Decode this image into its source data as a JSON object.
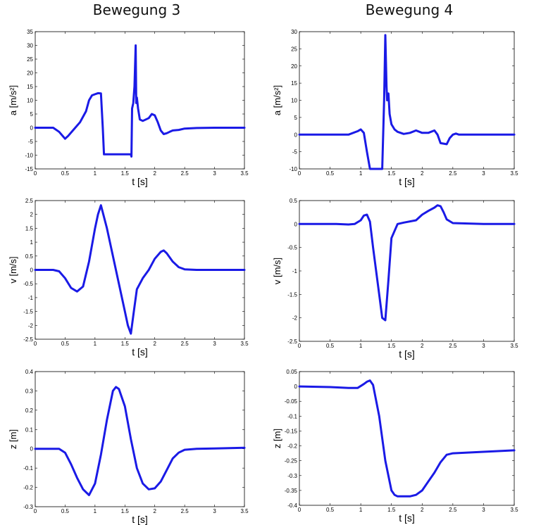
{
  "titles": {
    "left": "Bewegung 3",
    "right": "Bewegung 4"
  },
  "colors": {
    "line": "#1a1ae6",
    "axis": "#000000"
  },
  "chart_data": [
    {
      "id": "b3-a",
      "type": "line",
      "column_title": "Bewegung 3",
      "xlabel": "t [s]",
      "ylabel": "a [m/s²]",
      "xlim": [
        0,
        3.5
      ],
      "ylim": [
        -15,
        35
      ],
      "xticks": [
        0,
        0.5,
        1,
        1.5,
        2,
        2.5,
        3,
        3.5
      ],
      "xtick_labels": [
        "0",
        "0.5",
        "1",
        "1.5",
        "2",
        "2.5",
        "3",
        "3.5"
      ],
      "yticks": [
        -15,
        -10,
        -5,
        0,
        5,
        10,
        15,
        20,
        25,
        30,
        35
      ],
      "ytick_labels": [
        "-15",
        "-10",
        "-5",
        "0",
        "5",
        "10",
        "15",
        "20",
        "25",
        "30",
        "35"
      ],
      "series": [
        {
          "x": [
            0,
            0.3,
            0.4,
            0.5,
            0.55,
            0.65,
            0.75,
            0.85,
            0.9,
            0.95,
            1.0,
            1.05,
            1.1,
            1.13,
            1.15,
            1.4,
            1.55,
            1.6,
            1.61,
            1.62,
            1.64,
            1.66,
            1.68,
            1.69,
            1.7,
            1.72,
            1.75,
            1.8,
            1.85,
            1.9,
            1.95,
            2.0,
            2.05,
            2.1,
            2.15,
            2.2,
            2.25,
            2.3,
            2.4,
            2.5,
            2.7,
            3.0,
            3.5
          ],
          "y": [
            0,
            0,
            -1.5,
            -4,
            -3,
            -0.5,
            2,
            6,
            10,
            11.8,
            12.2,
            12.6,
            12.5,
            0,
            -9.7,
            -9.7,
            -9.7,
            -9.7,
            -10.5,
            7,
            9,
            15,
            30,
            9,
            11,
            7,
            3,
            2.5,
            3,
            3.5,
            5,
            4.5,
            2,
            -1,
            -2.3,
            -2,
            -1.5,
            -1,
            -0.8,
            -0.3,
            -0.1,
            0,
            0
          ]
        }
      ]
    },
    {
      "id": "b4-a",
      "type": "line",
      "column_title": "Bewegung 4",
      "xlabel": "t [s]",
      "ylabel": "a [m/s²]",
      "xlim": [
        0,
        3.5
      ],
      "ylim": [
        -10,
        30
      ],
      "xticks": [
        0,
        0.5,
        1,
        1.5,
        2,
        2.5,
        3,
        3.5
      ],
      "xtick_labels": [
        "0",
        "0.5",
        "1",
        "1.5",
        "2",
        "2.5",
        "3",
        "3.5"
      ],
      "yticks": [
        -10,
        -5,
        0,
        5,
        10,
        15,
        20,
        25,
        30
      ],
      "ytick_labels": [
        "-10",
        "-5",
        "0",
        "5",
        "10",
        "15",
        "20",
        "25",
        "30"
      ],
      "series": [
        {
          "x": [
            0,
            0.8,
            0.95,
            1.0,
            1.05,
            1.1,
            1.15,
            1.2,
            1.3,
            1.35,
            1.38,
            1.4,
            1.42,
            1.43,
            1.45,
            1.47,
            1.5,
            1.55,
            1.6,
            1.7,
            1.8,
            1.9,
            2.0,
            2.1,
            2.2,
            2.25,
            2.3,
            2.4,
            2.45,
            2.5,
            2.55,
            2.6,
            2.7,
            3.0,
            3.5
          ],
          "y": [
            0,
            0,
            1,
            1.5,
            0.5,
            -5,
            -10,
            -10,
            -10,
            -10,
            10,
            29,
            14,
            10,
            12,
            6,
            3,
            1.5,
            0.8,
            0.2,
            0.5,
            1.2,
            0.5,
            0.5,
            1.2,
            0,
            -2.5,
            -2.8,
            -1,
            0,
            0.3,
            0,
            0,
            0,
            0
          ]
        }
      ]
    },
    {
      "id": "b3-v",
      "type": "line",
      "column_title": "Bewegung 3",
      "xlabel": "t [s]",
      "ylabel": "v [m/s]",
      "xlim": [
        0,
        3.5
      ],
      "ylim": [
        -2.5,
        2.5
      ],
      "xticks": [
        0,
        0.5,
        1,
        1.5,
        2,
        2.5,
        3,
        3.5
      ],
      "xtick_labels": [
        "0",
        "0.5",
        "1",
        "1.5",
        "2",
        "2.5",
        "3",
        "3.5"
      ],
      "yticks": [
        -2.5,
        -2,
        -1.5,
        -1,
        -0.5,
        0,
        0.5,
        1,
        1.5,
        2,
        2.5
      ],
      "ytick_labels": [
        "-2.5",
        "-2",
        "-1.5",
        "-1",
        "-0.5",
        "0",
        "0.5",
        "1",
        "1.5",
        "2",
        "2.5"
      ],
      "series": [
        {
          "x": [
            0,
            0.3,
            0.4,
            0.5,
            0.6,
            0.7,
            0.8,
            0.9,
            1.0,
            1.05,
            1.1,
            1.2,
            1.3,
            1.4,
            1.5,
            1.55,
            1.6,
            1.65,
            1.7,
            1.8,
            1.9,
            2.0,
            2.1,
            2.15,
            2.2,
            2.3,
            2.4,
            2.5,
            2.7,
            3.0,
            3.5
          ],
          "y": [
            0,
            0,
            -0.05,
            -0.3,
            -0.65,
            -0.78,
            -0.6,
            0.3,
            1.5,
            2.0,
            2.33,
            1.5,
            0.5,
            -0.5,
            -1.5,
            -2.0,
            -2.3,
            -1.5,
            -0.7,
            -0.3,
            0,
            0.4,
            0.65,
            0.7,
            0.6,
            0.3,
            0.1,
            0.02,
            0,
            0,
            0
          ]
        }
      ]
    },
    {
      "id": "b4-v",
      "type": "line",
      "column_title": "Bewegung 4",
      "xlabel": "t [s]",
      "ylabel": "v [m/s]",
      "xlim": [
        0,
        3.5
      ],
      "ylim": [
        -2.5,
        0.5
      ],
      "xticks": [
        0,
        0.5,
        1,
        1.5,
        2,
        2.5,
        3,
        3.5
      ],
      "xtick_labels": [
        "0",
        "0.5",
        "1",
        "1.5",
        "2",
        "2.5",
        "3",
        "3.5"
      ],
      "yticks": [
        -2.5,
        -2,
        -1.5,
        -1,
        -0.5,
        0,
        0.5
      ],
      "ytick_labels": [
        "-2.5",
        "-2",
        "-1.5",
        "-1",
        "-0.5",
        "0",
        "0.5"
      ],
      "series": [
        {
          "x": [
            0,
            0.6,
            0.8,
            0.9,
            1.0,
            1.05,
            1.1,
            1.15,
            1.2,
            1.3,
            1.35,
            1.4,
            1.45,
            1.5,
            1.6,
            1.7,
            1.9,
            2.0,
            2.1,
            2.2,
            2.25,
            2.3,
            2.35,
            2.4,
            2.5,
            3.0,
            3.5
          ],
          "y": [
            0,
            0,
            -0.01,
            0,
            0.08,
            0.18,
            0.2,
            0.05,
            -0.5,
            -1.5,
            -2.0,
            -2.05,
            -1.2,
            -0.3,
            0,
            0.03,
            0.08,
            0.2,
            0.28,
            0.35,
            0.4,
            0.38,
            0.25,
            0.1,
            0.02,
            0,
            0
          ]
        }
      ]
    },
    {
      "id": "b3-z",
      "type": "line",
      "column_title": "Bewegung 3",
      "xlabel": "t [s]",
      "ylabel": "z [m]",
      "xlim": [
        0,
        3.5
      ],
      "ylim": [
        -0.3,
        0.4
      ],
      "xticks": [
        0,
        0.5,
        1,
        1.5,
        2,
        2.5,
        3,
        3.5
      ],
      "xtick_labels": [
        "0",
        "0.5",
        "1",
        "1.5",
        "2",
        "2.5",
        "3",
        "3.5"
      ],
      "yticks": [
        -0.3,
        -0.2,
        -0.1,
        0,
        0.1,
        0.2,
        0.3,
        0.4
      ],
      "ytick_labels": [
        "-0.3",
        "-0.2",
        "-0.1",
        "0",
        "0.1",
        "0.2",
        "0.3",
        "0.4"
      ],
      "series": [
        {
          "x": [
            0,
            0.4,
            0.5,
            0.6,
            0.7,
            0.8,
            0.9,
            1.0,
            1.1,
            1.2,
            1.3,
            1.35,
            1.4,
            1.5,
            1.6,
            1.7,
            1.8,
            1.9,
            2.0,
            2.1,
            2.2,
            2.3,
            2.4,
            2.5,
            2.7,
            3.0,
            3.5
          ],
          "y": [
            0,
            0,
            -0.02,
            -0.08,
            -0.15,
            -0.21,
            -0.24,
            -0.18,
            -0.03,
            0.15,
            0.3,
            0.32,
            0.31,
            0.22,
            0.05,
            -0.1,
            -0.18,
            -0.21,
            -0.205,
            -0.17,
            -0.11,
            -0.05,
            -0.02,
            -0.005,
            0,
            0.002,
            0.005
          ]
        }
      ]
    },
    {
      "id": "b4-z",
      "type": "line",
      "column_title": "Bewegung 4",
      "xlabel": "t [s]",
      "ylabel": "z [m]",
      "xlim": [
        0,
        3.5
      ],
      "ylim": [
        -0.4,
        0.05
      ],
      "xticks": [
        0,
        0.5,
        1,
        1.5,
        2,
        2.5,
        3,
        3.5
      ],
      "xtick_labels": [
        "0",
        "0.5",
        "1",
        "1.5",
        "2",
        "2.5",
        "3",
        "3.5"
      ],
      "yticks": [
        -0.4,
        -0.35,
        -0.3,
        -0.25,
        -0.2,
        -0.15,
        -0.1,
        -0.05,
        0,
        0.05
      ],
      "ytick_labels": [
        "-0.4",
        "-0.35",
        "-0.3",
        "-0.25",
        "-0.2",
        "-0.15",
        "-0.1",
        "-0.05",
        "0",
        "0.05"
      ],
      "series": [
        {
          "x": [
            0,
            0.5,
            0.8,
            0.95,
            1.05,
            1.1,
            1.15,
            1.2,
            1.3,
            1.4,
            1.5,
            1.55,
            1.6,
            1.7,
            1.8,
            1.9,
            2.0,
            2.1,
            2.2,
            2.3,
            2.4,
            2.5,
            3.0,
            3.5
          ],
          "y": [
            0,
            -0.002,
            -0.005,
            -0.005,
            0.008,
            0.016,
            0.02,
            0.005,
            -0.1,
            -0.25,
            -0.35,
            -0.365,
            -0.37,
            -0.37,
            -0.37,
            -0.365,
            -0.35,
            -0.32,
            -0.29,
            -0.255,
            -0.23,
            -0.225,
            -0.22,
            -0.215
          ]
        }
      ]
    }
  ]
}
